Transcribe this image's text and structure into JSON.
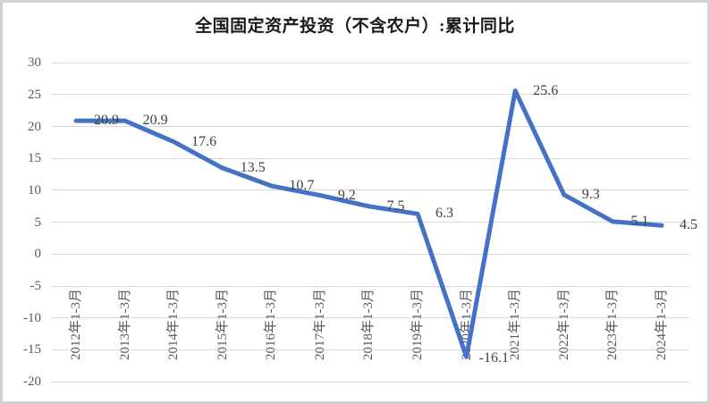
{
  "chart_data": {
    "type": "line",
    "title": "全国固定资产投资（不含农户）:累计同比",
    "categories": [
      "2012年1-3月",
      "2013年1-3月",
      "2014年1-3月",
      "2015年1-3月",
      "2016年1-3月",
      "2017年1-3月",
      "2018年1-3月",
      "2019年1-3月",
      "2020年1-3月",
      "2021年1-3月",
      "2022年1-3月",
      "2023年1-3月",
      "2024年1-3月"
    ],
    "values": [
      20.9,
      20.9,
      17.6,
      13.5,
      10.7,
      9.2,
      7.5,
      6.3,
      -16.1,
      25.6,
      9.3,
      5.1,
      4.5
    ],
    "data_labels": [
      "20.9",
      "20.9",
      "17.6",
      "13.5",
      "10.7",
      "9.2",
      "7.5",
      "6.3",
      "-16.1",
      "25.6",
      "9.3",
      "5.1",
      "4.5"
    ],
    "y_ticks": [
      30,
      25,
      20,
      15,
      10,
      5,
      0,
      -5,
      -10,
      -15,
      -20
    ],
    "ylim": [
      -20,
      30
    ],
    "xlabel": "",
    "ylabel": "",
    "grid": true,
    "legend_position": "none",
    "series_color": "#4472c4",
    "gridline_color": "#d9d9d9",
    "axis_label_color": "#595959",
    "data_label_color": "#3f3f3f",
    "frame_border_color": "#d2d2d2",
    "background_color": "#ffffff"
  }
}
